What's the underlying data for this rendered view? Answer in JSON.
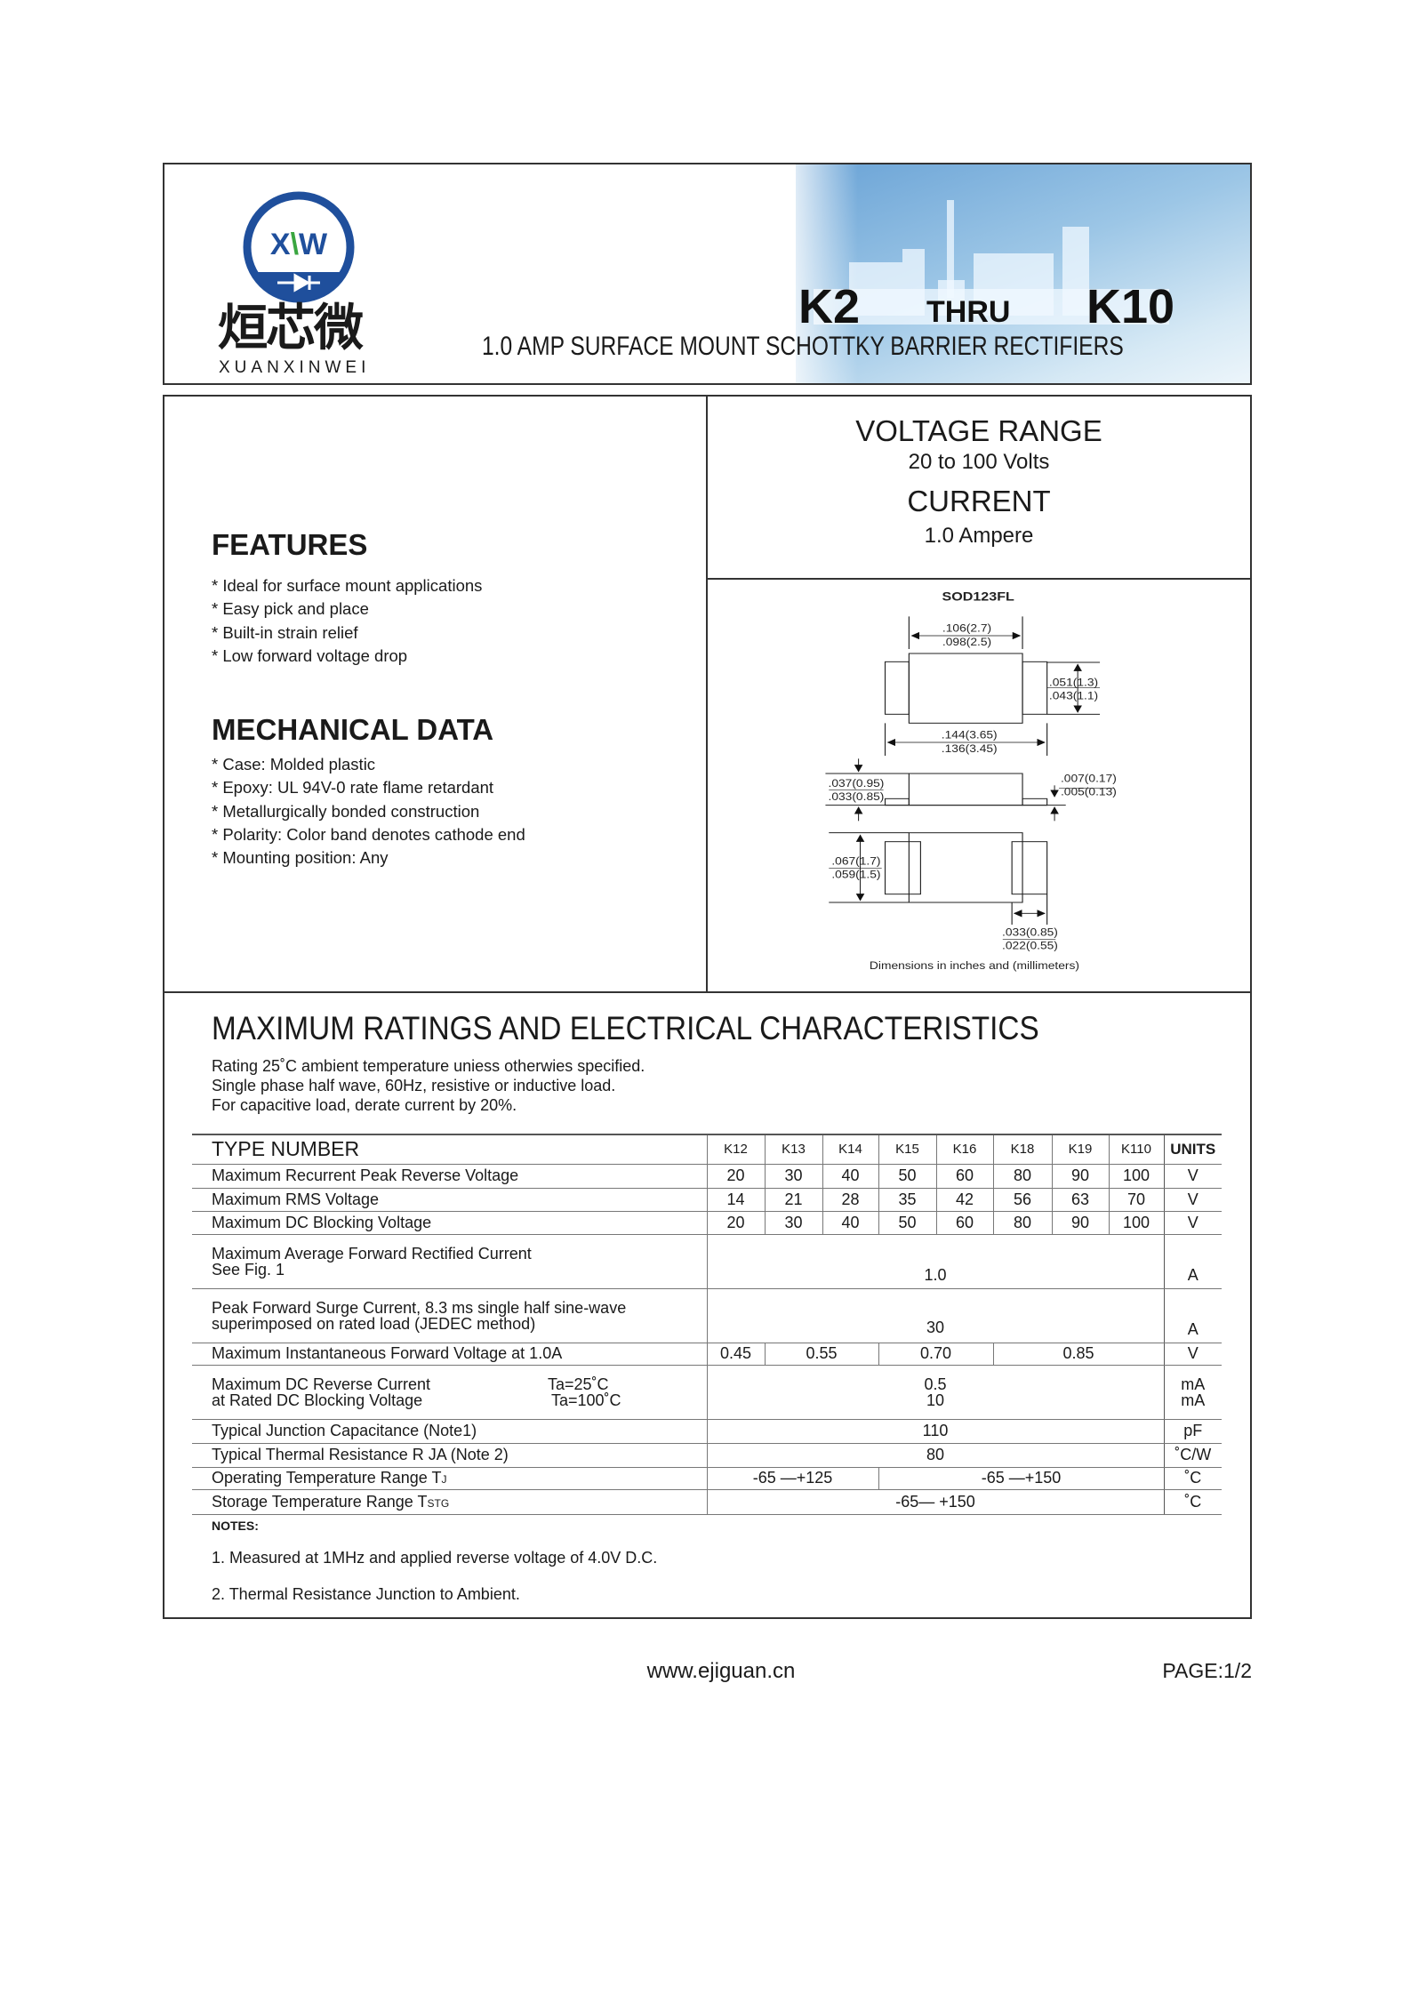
{
  "header": {
    "logo_letters": "XXW",
    "logo_chinese": "烜芯微",
    "logo_pinyin": "XUANXINWEI",
    "part_from": "K2",
    "thru": "THRU",
    "part_to": "K10",
    "subtitle": "1.0 AMP SURFACE MOUNT SCHOTTKY BARRIER RECTIFIERS",
    "brand_color": "#1f4f9c",
    "accent_green": "#3aa640"
  },
  "specs": {
    "voltage_label": "VOLTAGE RANGE",
    "voltage_value": "20 to 100 Volts",
    "current_label": "CURRENT",
    "current_value": "1.0 Ampere"
  },
  "features": {
    "title": "FEATURES",
    "items": [
      "* Ideal for surface mount applications",
      "* Easy pick and place",
      "* Built-in strain relief",
      "* Low forward voltage drop"
    ]
  },
  "mechanical": {
    "title": "MECHANICAL DATA",
    "items": [
      "* Case: Molded plastic",
      "* Epoxy: UL 94V-0 rate flame retardant",
      "* Metallurgically bonded construction",
      "* Polarity: Color band denotes cathode end",
      "* Mounting position: Any"
    ]
  },
  "package": {
    "name": "SOD123FL",
    "dims": {
      "body_len_max": ".106(2.7)",
      "body_len_min": ".098(2.5)",
      "lead_w_max": ".051(1.3)",
      "lead_w_min": ".043(1.1)",
      "total_len_max": ".144(3.65)",
      "total_len_min": ".136(3.45)",
      "height_max": ".037(0.95)",
      "height_min": ".033(0.85)",
      "lead_t_max": ".007(0.17)",
      "lead_t_min": ".005(0.13)",
      "width_max": ".067(1.7)",
      "width_min": ".059(1.5)",
      "pad_max": ".033(0.85)",
      "pad_min": ".022(0.55)"
    },
    "caption": "Dimensions in inches and (millimeters)"
  },
  "ratings": {
    "title": "MAXIMUM RATINGS AND ELECTRICAL CHARACTERISTICS",
    "notes_lines": [
      "Rating 25˚C ambient temperature uniess otherwies specified.",
      "Single phase half wave, 60Hz, resistive or inductive load.",
      "For capacitive load, derate current by 20%."
    ],
    "table": {
      "type_header": "TYPE NUMBER",
      "types": [
        "K12",
        "K13",
        "K14",
        "K15",
        "K16",
        "K18",
        "K19",
        "K110"
      ],
      "units_header": "UNITS",
      "rows": [
        {
          "label": "Maximum Recurrent Peak Reverse Voltage",
          "values": [
            "20",
            "30",
            "40",
            "50",
            "60",
            "80",
            "90",
            "100"
          ],
          "unit": "V"
        },
        {
          "label": "Maximum RMS Voltage",
          "values": [
            "14",
            "21",
            "28",
            "35",
            "42",
            "56",
            "63",
            "70"
          ],
          "unit": "V"
        },
        {
          "label": "Maximum DC Blocking Voltage",
          "values": [
            "20",
            "30",
            "40",
            "50",
            "60",
            "80",
            "90",
            "100"
          ],
          "unit": "V"
        },
        {
          "label": "Maximum Average Forward Rectified Current",
          "label2": "See Fig. 1",
          "value": "1.0",
          "unit": "A"
        },
        {
          "label": "Peak Forward Surge Current, 8.3 ms single half sine-wave",
          "label2": "superimposed on rated load (JEDEC method)",
          "value": "30",
          "unit": "A"
        },
        {
          "label": "Maximum Instantaneous Forward Voltage at 1.0A",
          "values": [
            "0.45",
            "0.55",
            "0.70",
            "0.85"
          ],
          "unit": "V"
        },
        {
          "label": "Maximum DC Reverse Current",
          "cond": "Ta=25˚C",
          "label2": "at Rated DC Blocking Voltage",
          "cond2": "Ta=100˚C",
          "value": "0.5",
          "value2": "10",
          "unit": "mA",
          "unit2": "mA"
        },
        {
          "label": "Typical Junction Capacitance (Note1)",
          "value": "110",
          "unit": "pF"
        },
        {
          "label": "Typical Thermal Resistance R  JA (Note 2)",
          "value": "80",
          "unit": "˚C/W"
        },
        {
          "label": "Operating Temperature Range T",
          "sub": "J",
          "values": [
            "-65 —+125",
            "-65 —+150"
          ],
          "unit": "˚C"
        },
        {
          "label": "Storage Temperature Range T",
          "sub": "STG",
          "value": "-65— +150",
          "unit": "˚C"
        }
      ]
    },
    "notes_title": "NOTES:",
    "notes": [
      "1. Measured at 1MHz and applied reverse voltage of 4.0V D.C.",
      "2. Thermal Resistance Junction to Ambient."
    ]
  },
  "footer": {
    "website": "www.ejiguan.cn",
    "page": "PAGE:1/2"
  }
}
